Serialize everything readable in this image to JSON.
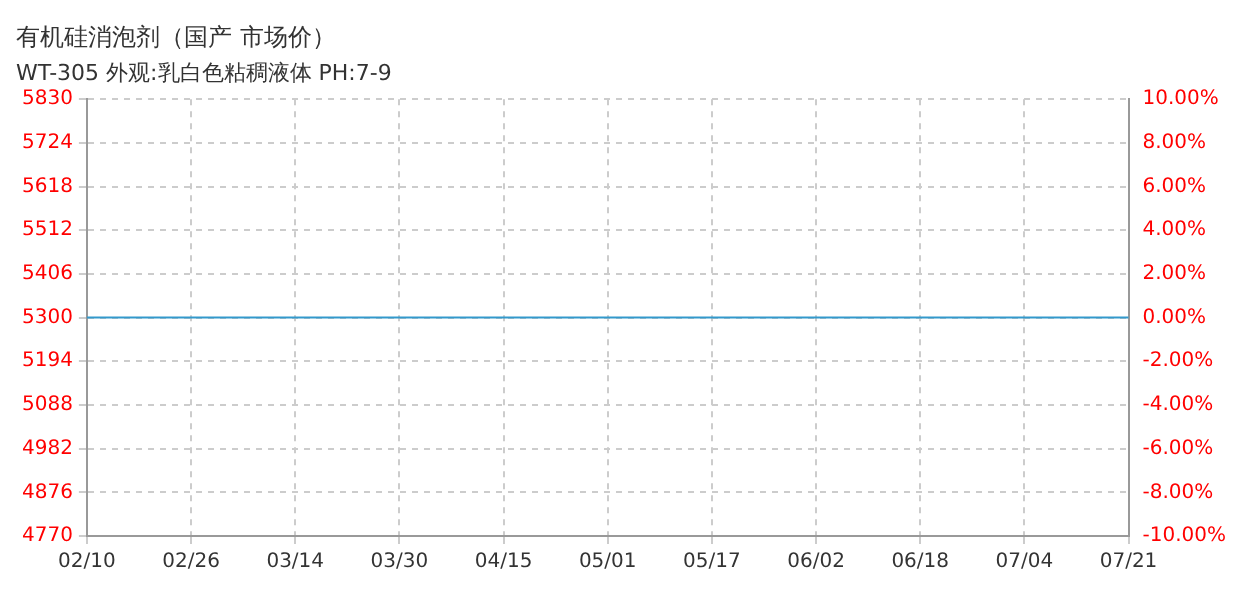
{
  "chart_data": {
    "type": "line",
    "title": "有机硅消泡剂（国产 市场价）",
    "subtitle": "WT-305 外观:乳白色粘稠液体 PH:7-9",
    "categories": [
      "02/10",
      "02/26",
      "03/14",
      "03/30",
      "04/15",
      "05/01",
      "05/17",
      "06/02",
      "06/18",
      "07/04",
      "07/21"
    ],
    "series": [
      {
        "color": "#3399cc",
        "values": [
          5300,
          5300,
          5300,
          5300,
          5300,
          5300,
          5300,
          5300,
          5300,
          5300,
          5300
        ]
      }
    ],
    "ylim": [
      4770,
      5830
    ],
    "yticks": [
      4770,
      4876,
      4982,
      5088,
      5194,
      5300,
      5406,
      5512,
      5618,
      5724,
      5830
    ],
    "y2lim": [
      -10,
      10
    ],
    "y2ticks": [
      {
        "value": -10,
        "label": "-10.00%"
      },
      {
        "value": -8,
        "label": "-8.00%"
      },
      {
        "value": -6,
        "label": "-6.00%"
      },
      {
        "value": -4,
        "label": "-4.00%"
      },
      {
        "value": -2,
        "label": "-2.00%"
      },
      {
        "value": 0,
        "label": "0.00%"
      },
      {
        "value": 2,
        "label": "2.00%"
      },
      {
        "value": 4,
        "label": "4.00%"
      },
      {
        "value": 6,
        "label": "6.00%"
      },
      {
        "value": 8,
        "label": "8.00%"
      },
      {
        "value": 10,
        "label": "10.00%"
      }
    ],
    "grid": true,
    "legend": false,
    "marker": "none",
    "line_style": "solid"
  }
}
